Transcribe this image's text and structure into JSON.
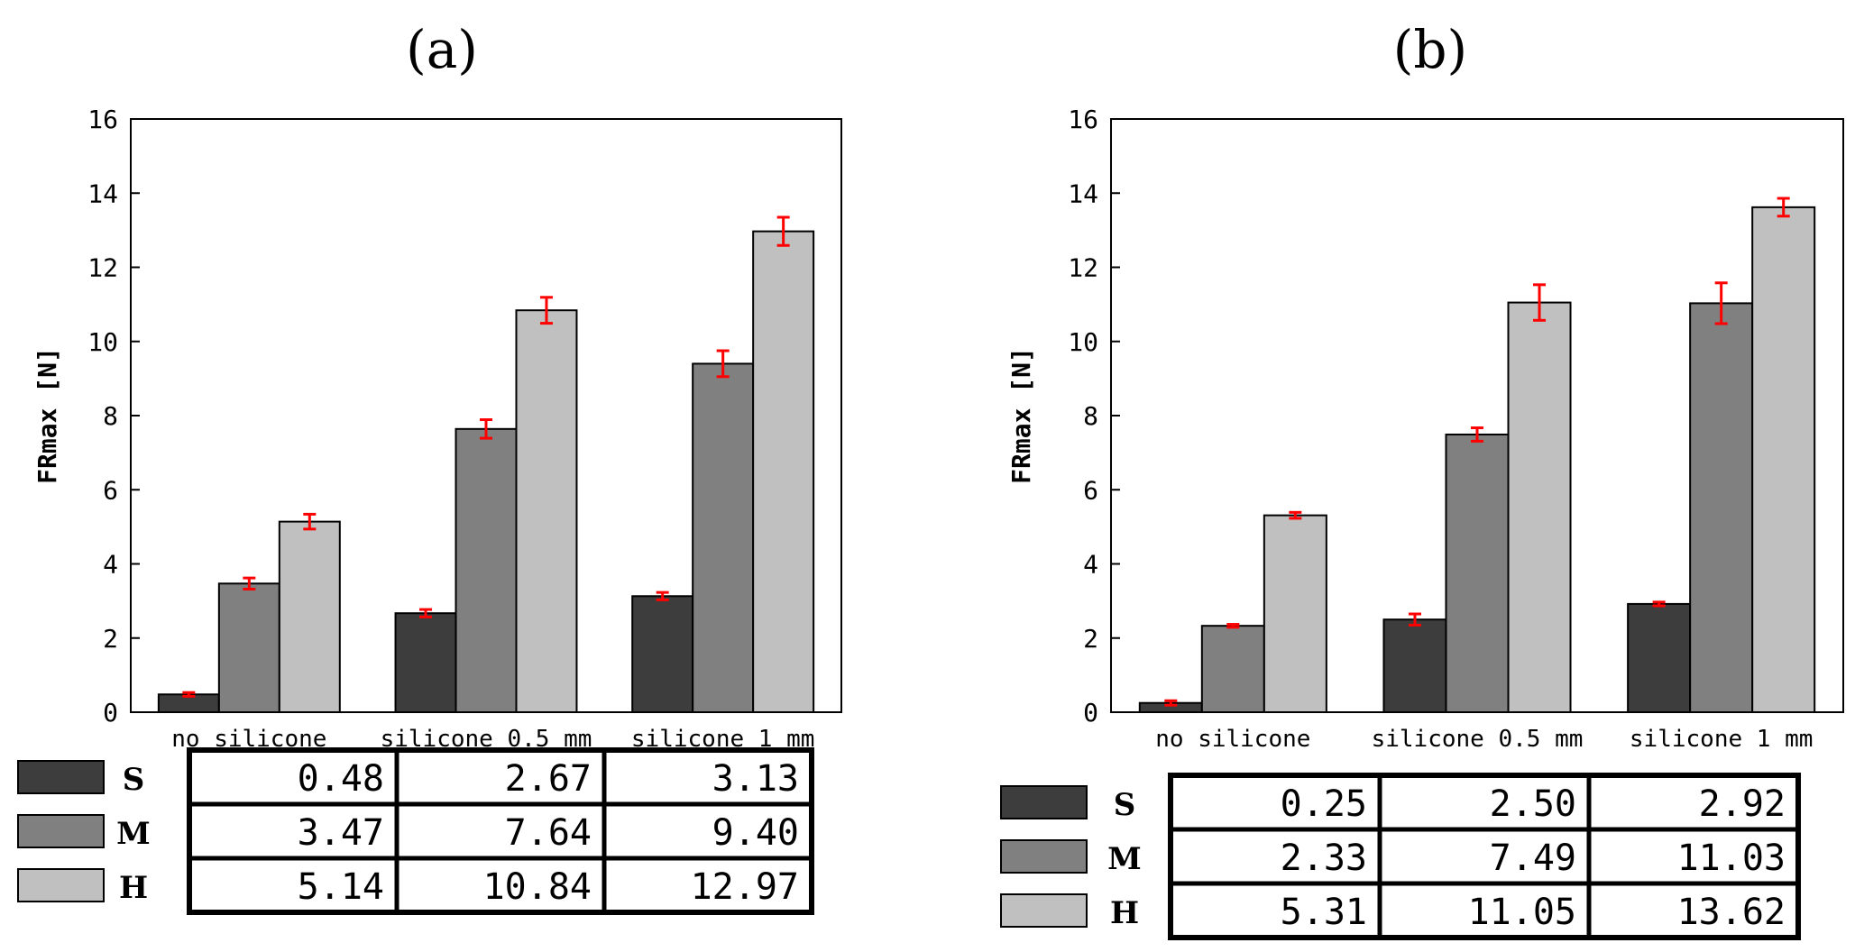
{
  "chart_data": [
    {
      "type": "bar",
      "title": "(a)",
      "xlabel": "",
      "ylabel": "FRmax [N]",
      "ylim": [
        0,
        16
      ],
      "yticks": [
        0,
        2,
        4,
        6,
        8,
        10,
        12,
        14,
        16
      ],
      "categories": [
        "no silicone",
        "silicone 0.5 mm",
        "silicone 1 mm"
      ],
      "series": [
        {
          "name": "S",
          "color": "#3d3d3d",
          "values": [
            0.48,
            2.67,
            3.13
          ],
          "errors": [
            0.05,
            0.1,
            0.1
          ]
        },
        {
          "name": "M",
          "color": "#808080",
          "values": [
            3.47,
            7.64,
            9.4
          ],
          "errors": [
            0.15,
            0.25,
            0.35
          ]
        },
        {
          "name": "H",
          "color": "#c0c0c0",
          "values": [
            5.14,
            10.84,
            12.97
          ],
          "errors": [
            0.2,
            0.35,
            0.38
          ]
        }
      ],
      "table": [
        [
          "0.48",
          "2.67",
          "3.13"
        ],
        [
          "3.47",
          "7.64",
          "9.40"
        ],
        [
          "5.14",
          "10.84",
          "12.97"
        ]
      ]
    },
    {
      "type": "bar",
      "title": "(b)",
      "xlabel": "",
      "ylabel": "FRmax [N]",
      "ylim": [
        0,
        16
      ],
      "yticks": [
        0,
        2,
        4,
        6,
        8,
        10,
        12,
        14,
        16
      ],
      "categories": [
        "no silicone",
        "silicone 0.5 mm",
        "silicone 1 mm"
      ],
      "series": [
        {
          "name": "S",
          "color": "#3d3d3d",
          "values": [
            0.25,
            2.5,
            2.92
          ],
          "errors": [
            0.06,
            0.15,
            0.05
          ]
        },
        {
          "name": "M",
          "color": "#808080",
          "values": [
            2.33,
            7.49,
            11.03
          ],
          "errors": [
            0.04,
            0.18,
            0.55
          ]
        },
        {
          "name": "H",
          "color": "#c0c0c0",
          "values": [
            5.31,
            11.05,
            13.62
          ],
          "errors": [
            0.08,
            0.48,
            0.24
          ]
        }
      ],
      "table": [
        [
          "0.25",
          "2.50",
          "2.92"
        ],
        [
          "2.33",
          "7.49",
          "11.03"
        ],
        [
          "5.31",
          "11.05",
          "13.62"
        ]
      ]
    }
  ],
  "colors": {
    "error_bar": "#ff0000",
    "axis": "#000000"
  }
}
